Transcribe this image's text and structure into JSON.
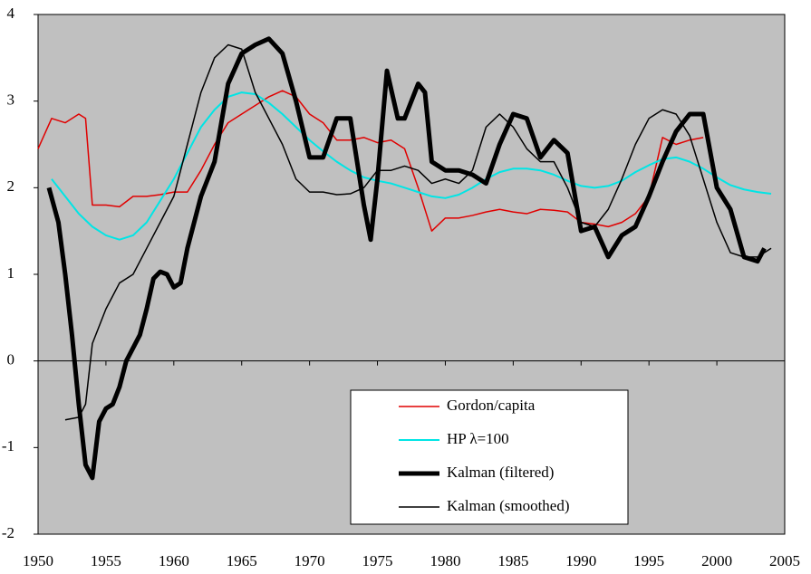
{
  "chart_data": {
    "type": "line",
    "xlim": [
      1950,
      2005
    ],
    "xticks": [
      1950,
      1955,
      1960,
      1965,
      1970,
      1975,
      1980,
      1985,
      1990,
      1995,
      2000,
      2005
    ],
    "ylim": [
      -2,
      4
    ],
    "yticks": [
      -2,
      -1,
      0,
      1,
      2,
      3,
      4
    ],
    "background": "#c0c0c0",
    "legend": "lower-right",
    "series": [
      {
        "name": "Gordon/capita",
        "color": "#e00000",
        "width": 1.5,
        "x": [
          1950,
          1951,
          1952,
          1953,
          1953.5,
          1954,
          1955,
          1956,
          1957,
          1958,
          1959,
          1960,
          1961,
          1962,
          1963,
          1964,
          1965,
          1966,
          1967,
          1968,
          1969,
          1970,
          1971,
          1972,
          1973,
          1974,
          1975,
          1976,
          1977,
          1978,
          1979,
          1980,
          1981,
          1982,
          1983,
          1984,
          1985,
          1986,
          1987,
          1988,
          1989,
          1990,
          1991,
          1992,
          1993,
          1994,
          1995,
          1996,
          1997,
          1998,
          1999
        ],
        "values": [
          2.45,
          2.8,
          2.75,
          2.85,
          2.8,
          1.8,
          1.8,
          1.78,
          1.9,
          1.9,
          1.92,
          1.95,
          1.95,
          2.2,
          2.5,
          2.75,
          2.85,
          2.95,
          3.05,
          3.12,
          3.05,
          2.85,
          2.75,
          2.55,
          2.55,
          2.58,
          2.52,
          2.55,
          2.45,
          2.0,
          1.5,
          1.65,
          1.65,
          1.68,
          1.72,
          1.75,
          1.72,
          1.7,
          1.75,
          1.74,
          1.72,
          1.6,
          1.58,
          1.55,
          1.6,
          1.7,
          1.9,
          2.58,
          2.5,
          2.55,
          2.58
        ]
      },
      {
        "name": "HP λ=100",
        "color": "#00e5e5",
        "width": 2,
        "x": [
          1951,
          1952,
          1953,
          1954,
          1955,
          1956,
          1957,
          1958,
          1959,
          1960,
          1961,
          1962,
          1963,
          1964,
          1965,
          1966,
          1967,
          1968,
          1969,
          1970,
          1971,
          1972,
          1973,
          1974,
          1975,
          1976,
          1977,
          1978,
          1979,
          1980,
          1981,
          1982,
          1983,
          1984,
          1985,
          1986,
          1987,
          1988,
          1989,
          1990,
          1991,
          1992,
          1993,
          1994,
          1995,
          1996,
          1997,
          1998,
          1999,
          2000,
          2001,
          2002,
          2003,
          2004
        ],
        "values": [
          2.1,
          1.9,
          1.7,
          1.55,
          1.45,
          1.4,
          1.45,
          1.6,
          1.85,
          2.1,
          2.4,
          2.7,
          2.9,
          3.05,
          3.1,
          3.08,
          2.98,
          2.85,
          2.7,
          2.55,
          2.42,
          2.3,
          2.2,
          2.12,
          2.08,
          2.05,
          2.0,
          1.95,
          1.9,
          1.88,
          1.92,
          2.0,
          2.1,
          2.18,
          2.22,
          2.22,
          2.2,
          2.15,
          2.08,
          2.02,
          2.0,
          2.02,
          2.08,
          2.18,
          2.26,
          2.33,
          2.35,
          2.3,
          2.22,
          2.12,
          2.03,
          1.98,
          1.95,
          1.93
        ]
      },
      {
        "name": "Kalman (filtered)",
        "color": "#000000",
        "width": 5,
        "x": [
          1950.8,
          1951.5,
          1952,
          1952.5,
          1953,
          1953.5,
          1954,
          1954.5,
          1955,
          1955.5,
          1956,
          1956.5,
          1957,
          1957.5,
          1958,
          1958.5,
          1959,
          1959.5,
          1960,
          1960.5,
          1961,
          1962,
          1963,
          1964,
          1965,
          1966,
          1967,
          1968,
          1969,
          1970,
          1971,
          1972,
          1973,
          1974,
          1974.5,
          1975,
          1975.7,
          1976.5,
          1977,
          1978,
          1978.5,
          1979,
          1980,
          1981,
          1982,
          1983,
          1984,
          1985,
          1986,
          1987,
          1988,
          1989,
          1990,
          1991,
          1992,
          1993,
          1994,
          1995,
          1996,
          1997,
          1998,
          1999,
          2000,
          2001,
          2002,
          2003,
          2003.5
        ],
        "values": [
          2.0,
          1.6,
          1.0,
          0.3,
          -0.5,
          -1.2,
          -1.35,
          -0.7,
          -0.55,
          -0.5,
          -0.3,
          0.0,
          0.15,
          0.3,
          0.6,
          0.95,
          1.03,
          1.0,
          0.85,
          0.9,
          1.3,
          1.9,
          2.3,
          3.2,
          3.55,
          3.65,
          3.72,
          3.55,
          3.0,
          2.35,
          2.35,
          2.8,
          2.8,
          1.8,
          1.4,
          2.1,
          3.35,
          2.8,
          2.8,
          3.2,
          3.1,
          2.3,
          2.2,
          2.2,
          2.15,
          2.05,
          2.5,
          2.85,
          2.8,
          2.35,
          2.55,
          2.4,
          1.5,
          1.55,
          1.2,
          1.45,
          1.55,
          1.9,
          2.3,
          2.65,
          2.85,
          2.85,
          2.0,
          1.75,
          1.2,
          1.15,
          1.3
        ]
      },
      {
        "name": "Kalman (smoothed)",
        "color": "#000000",
        "width": 1.5,
        "x": [
          1952,
          1953,
          1953.5,
          1954,
          1955,
          1956,
          1957,
          1958,
          1959,
          1960,
          1961,
          1962,
          1963,
          1964,
          1965,
          1966,
          1967,
          1968,
          1969,
          1970,
          1971,
          1972,
          1973,
          1974,
          1975,
          1976,
          1977,
          1978,
          1979,
          1980,
          1981,
          1982,
          1983,
          1984,
          1985,
          1986,
          1987,
          1988,
          1989,
          1990,
          1991,
          1992,
          1993,
          1994,
          1995,
          1996,
          1997,
          1998,
          1999,
          2000,
          2001,
          2002,
          2003,
          2004
        ],
        "values": [
          -0.68,
          -0.65,
          -0.5,
          0.2,
          0.6,
          0.9,
          1.0,
          1.3,
          1.6,
          1.9,
          2.5,
          3.1,
          3.5,
          3.65,
          3.6,
          3.1,
          2.8,
          2.5,
          2.1,
          1.95,
          1.95,
          1.92,
          1.93,
          2.0,
          2.2,
          2.2,
          2.25,
          2.2,
          2.05,
          2.1,
          2.05,
          2.2,
          2.7,
          2.85,
          2.7,
          2.45,
          2.3,
          2.3,
          2.0,
          1.6,
          1.55,
          1.75,
          2.1,
          2.5,
          2.8,
          2.9,
          2.85,
          2.6,
          2.1,
          1.6,
          1.25,
          1.2,
          1.2,
          1.3
        ]
      }
    ]
  }
}
